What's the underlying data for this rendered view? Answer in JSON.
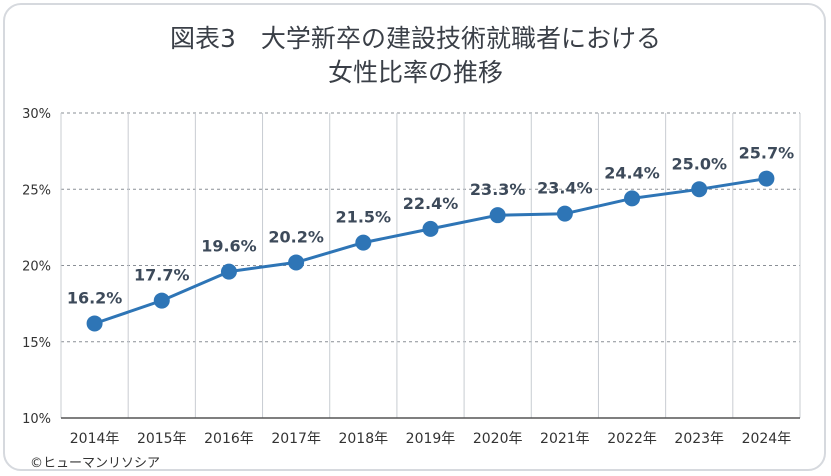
{
  "chart_data": {
    "type": "line",
    "title_line1": "図表3　大学新卒の建設技術就職者における",
    "title_line2": "女性比率の推移",
    "categories": [
      "2014年",
      "2015年",
      "2016年",
      "2017年",
      "2018年",
      "2019年",
      "2020年",
      "2021年",
      "2022年",
      "2023年",
      "2024年"
    ],
    "values": [
      16.2,
      17.7,
      19.6,
      20.2,
      21.5,
      22.4,
      23.3,
      23.4,
      24.4,
      25.0,
      25.7
    ],
    "data_labels": [
      "16.2%",
      "17.7%",
      "19.6%",
      "20.2%",
      "21.5%",
      "22.4%",
      "23.3%",
      "23.4%",
      "24.4%",
      "25.0%",
      "25.7%"
    ],
    "y_ticks": [
      10,
      15,
      20,
      25,
      30
    ],
    "y_tick_labels": [
      "10%",
      "15%",
      "20%",
      "25%",
      "30%"
    ],
    "ylim": [
      10,
      30
    ],
    "grid": true,
    "line_color": "#2e75b6",
    "xlabel": "",
    "ylabel": ""
  },
  "copyright": "©ヒューマンリソシア"
}
